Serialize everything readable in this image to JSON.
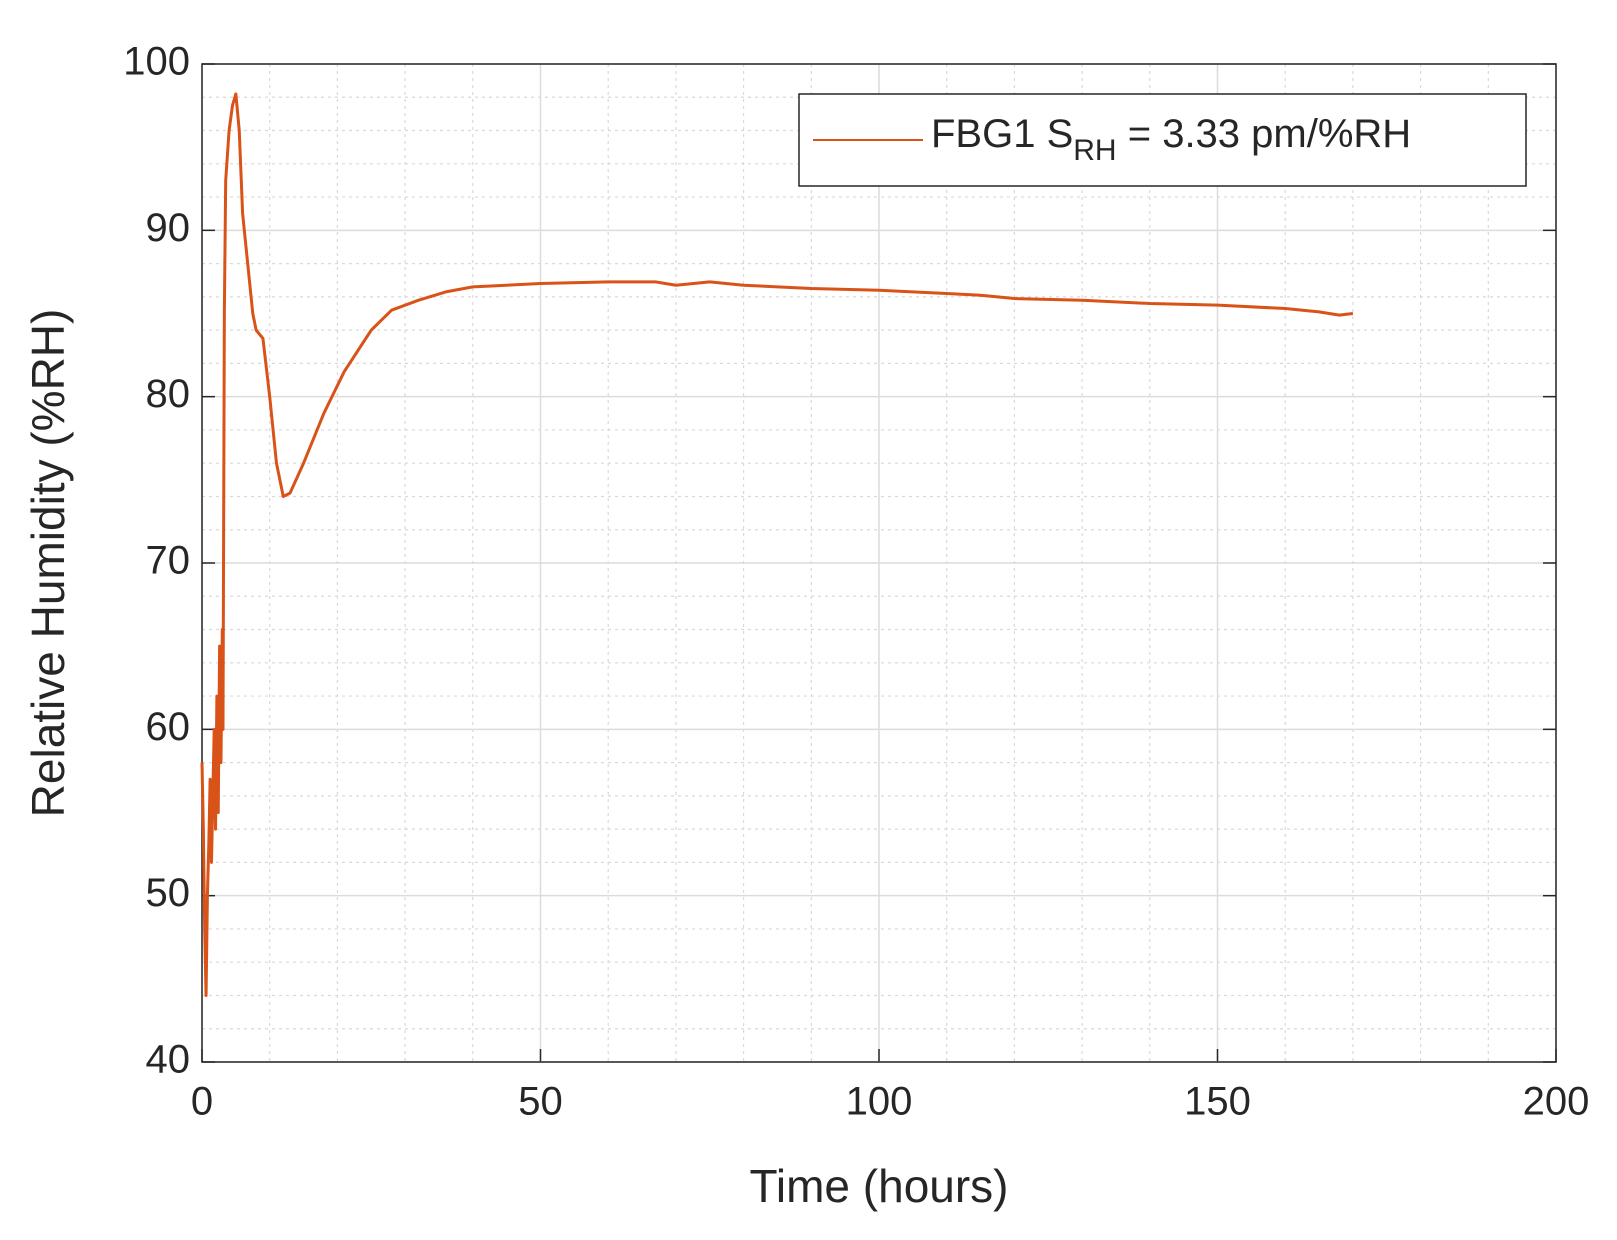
{
  "chart_data": {
    "type": "line",
    "xlabel": "Time (hours)",
    "ylabel": "Relative Humidity (%RH)",
    "x": [
      0,
      0.2,
      0.4,
      0.6,
      0.8,
      1,
      1.2,
      1.4,
      1.6,
      1.8,
      2,
      2.2,
      2.4,
      2.6,
      2.8,
      3,
      3.1,
      3.3,
      3.5,
      4,
      4.5,
      5,
      5.5,
      6,
      7,
      7.5,
      8,
      9,
      10,
      11,
      12,
      13,
      15,
      18,
      21,
      25,
      28,
      32,
      36,
      40,
      45,
      50,
      60,
      67,
      70,
      75,
      80,
      90,
      100,
      110,
      115,
      120,
      130,
      140,
      150,
      160,
      165,
      168,
      170
    ],
    "series": [
      {
        "color": "#d95319",
        "legend_label": {
          "text": "FBG1 S",
          "subscript": "RH",
          "suffix": " = 3.33 pm/%RH"
        },
        "values": [
          58,
          54,
          48,
          44,
          50,
          53,
          57,
          52,
          56,
          60,
          54,
          62,
          55,
          65,
          58,
          66,
          60,
          85,
          93,
          96,
          97.5,
          98.2,
          96,
          91,
          87,
          85,
          84,
          83.5,
          80,
          76,
          74,
          74.2,
          76,
          79,
          81.5,
          84,
          85.2,
          85.8,
          86.3,
          86.6,
          86.7,
          86.8,
          86.9,
          86.9,
          86.7,
          86.9,
          86.7,
          86.5,
          86.4,
          86.2,
          86.1,
          85.9,
          85.8,
          85.6,
          85.5,
          85.3,
          85.1,
          84.9,
          85.0
        ]
      }
    ],
    "xlim": [
      0,
      200
    ],
    "xticks": [
      0,
      50,
      100,
      150,
      200
    ],
    "ylim": [
      40,
      100
    ],
    "yticks": [
      40,
      50,
      60,
      70,
      80,
      90,
      100
    ],
    "xminorticks": [
      10,
      20,
      30,
      40,
      60,
      70,
      80,
      90,
      110,
      120,
      130,
      140,
      160,
      170,
      180,
      190
    ],
    "yminorticks": [
      42,
      44,
      46,
      48,
      52,
      54,
      56,
      58,
      62,
      64,
      66,
      68,
      72,
      74,
      76,
      78,
      82,
      84,
      86,
      88,
      92,
      94,
      96,
      98
    ],
    "grid": true,
    "minor_grid": true,
    "legend_position": "northeast"
  }
}
